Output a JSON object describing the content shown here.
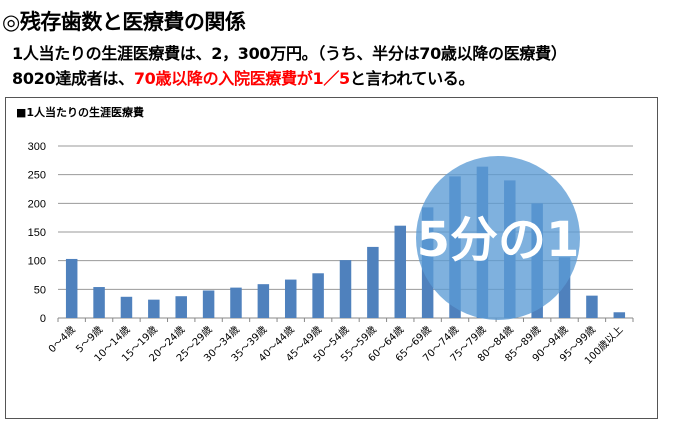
{
  "header": {
    "title": "◎残存歯数と医療費の関係",
    "line1": "1人当たりの生涯医療費は、2，300万円。（うち、半分は70歳以降の医療費）",
    "line2_prefix": "8020達成者は、",
    "line2_highlight": "70歳以降の入院医療費が1／5",
    "line2_suffix": "と言われている。",
    "highlight_color": "#ff0000"
  },
  "callout": {
    "text": "5分の1",
    "color": "#5b9bd5"
  },
  "chart_data": {
    "type": "bar",
    "title": "■1人当たりの生涯医療費",
    "categories": [
      "0～4歳",
      "5～9歳",
      "10～14歳",
      "15～19歳",
      "20～24歳",
      "25～29歳",
      "30～34歳",
      "35～39歳",
      "40～44歳",
      "45～49歳",
      "50～54歳",
      "55～59歳",
      "60～64歳",
      "65～69歳",
      "70～74歳",
      "75～79歳",
      "80～84歳",
      "85～89歳",
      "90～94歳",
      "95～99歳",
      "100歳以上"
    ],
    "values": [
      103,
      54,
      37,
      32,
      38,
      48,
      53,
      59,
      67,
      78,
      101,
      124,
      161,
      193,
      247,
      264,
      240,
      200,
      106,
      39,
      10
    ],
    "ylim": [
      0,
      300
    ],
    "yticks": [
      0,
      50,
      100,
      150,
      200,
      250,
      300
    ],
    "grid": true,
    "bar_color": "#4f81bd"
  }
}
